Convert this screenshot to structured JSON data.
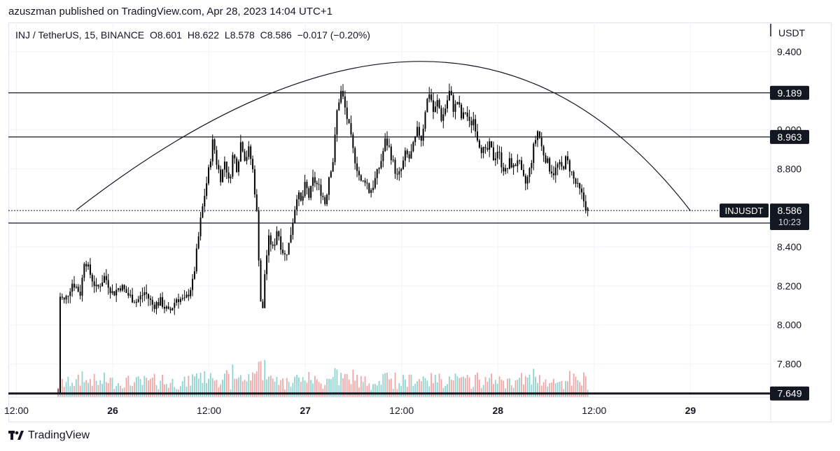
{
  "published_line": "azuszman published on TradingView.com, Apr 28, 2023 14:04 UTC+1",
  "legend": {
    "symbol": "INJ / TetherUS, 15, BINANCE",
    "open": "O8.601",
    "high": "H8.622",
    "low": "L8.578",
    "close": "C8.586",
    "change": "−0.017 (−0.20%)"
  },
  "footer": {
    "logo_icon": "tradingview-logo-icon",
    "brand": "TradingView"
  },
  "colors": {
    "candle": "#000000",
    "volume_up": "#8fd3d0",
    "volume_down": "#f2a6a6",
    "grid": "#f0f3fa",
    "axis_text": "#131722"
  },
  "chart_data": {
    "type": "candlestick",
    "symbol": "INJUSDT",
    "timeframe": "15",
    "currency_label": "USDT",
    "y_ticks": [
      7.8,
      8.0,
      8.2,
      8.4,
      8.8,
      9.0,
      9.4
    ],
    "y_tick_labels": [
      "7.800",
      "8.000",
      "8.200",
      "8.400",
      "8.800",
      "9.000",
      "9.400"
    ],
    "ylim": [
      7.63,
      9.55
    ],
    "x_ticks": [
      {
        "label": "12:00",
        "t": 12
      },
      {
        "label": "26",
        "t": 24
      },
      {
        "label": "12:00",
        "t": 36
      },
      {
        "label": "27",
        "t": 48
      },
      {
        "label": "12:00",
        "t": 60
      },
      {
        "label": "28",
        "t": 72
      },
      {
        "label": "12:00",
        "t": 84
      },
      {
        "label": "29",
        "t": 96
      }
    ],
    "xlim": [
      11,
      106
    ],
    "horizontal_levels": [
      {
        "value": 9.189,
        "label": "9.189"
      },
      {
        "value": 8.963,
        "label": "8.963"
      },
      {
        "value": 8.522,
        "label": "8.522"
      },
      {
        "value": 7.649,
        "label": "7.649",
        "thick": true
      }
    ],
    "last_price": {
      "value": 8.586,
      "label": "8.586",
      "name": "INJUSDT",
      "countdown": "10:23"
    },
    "arc": {
      "start": [
        19.5,
        8.59
      ],
      "peak": [
        62.5,
        9.35
      ],
      "end": [
        96,
        8.585
      ]
    },
    "price_path": [
      [
        17.2,
        7.65
      ],
      [
        17.4,
        8.15
      ],
      [
        18,
        8.12
      ],
      [
        19,
        8.22
      ],
      [
        20,
        8.16
      ],
      [
        20.5,
        8.35
      ],
      [
        21,
        8.28
      ],
      [
        22,
        8.18
      ],
      [
        23,
        8.25
      ],
      [
        24,
        8.16
      ],
      [
        25,
        8.2
      ],
      [
        26,
        8.15
      ],
      [
        27,
        8.12
      ],
      [
        28,
        8.17
      ],
      [
        29,
        8.1
      ],
      [
        30,
        8.12
      ],
      [
        31,
        8.06
      ],
      [
        32,
        8.14
      ],
      [
        33,
        8.12
      ],
      [
        34,
        8.22
      ],
      [
        35,
        8.55
      ],
      [
        35.5,
        8.68
      ],
      [
        36,
        8.8
      ],
      [
        36.5,
        8.95
      ],
      [
        37,
        8.82
      ],
      [
        37.5,
        8.75
      ],
      [
        38,
        8.85
      ],
      [
        38.5,
        8.72
      ],
      [
        39,
        8.88
      ],
      [
        39.5,
        8.8
      ],
      [
        40,
        8.95
      ],
      [
        40.5,
        8.85
      ],
      [
        41,
        8.9
      ],
      [
        41.5,
        8.78
      ],
      [
        42,
        8.55
      ],
      [
        42.3,
        8.25
      ],
      [
        42.6,
        8.0
      ],
      [
        43,
        8.3
      ],
      [
        43.5,
        8.45
      ],
      [
        44,
        8.38
      ],
      [
        44.5,
        8.5
      ],
      [
        45,
        8.4
      ],
      [
        45.5,
        8.35
      ],
      [
        46,
        8.42
      ],
      [
        46.5,
        8.55
      ],
      [
        47,
        8.68
      ],
      [
        47.5,
        8.62
      ],
      [
        48,
        8.72
      ],
      [
        48.5,
        8.65
      ],
      [
        49,
        8.75
      ],
      [
        50,
        8.68
      ],
      [
        50.5,
        8.62
      ],
      [
        51,
        8.78
      ],
      [
        51.5,
        8.85
      ],
      [
        52,
        9.12
      ],
      [
        52.5,
        9.2
      ],
      [
        53,
        9.1
      ],
      [
        53.5,
        9.0
      ],
      [
        54,
        8.88
      ],
      [
        54.5,
        8.8
      ],
      [
        55,
        8.72
      ],
      [
        55.5,
        8.75
      ],
      [
        56,
        8.68
      ],
      [
        56.5,
        8.72
      ],
      [
        57,
        8.78
      ],
      [
        57.5,
        8.85
      ],
      [
        58,
        8.95
      ],
      [
        58.5,
        8.9
      ],
      [
        59,
        8.82
      ],
      [
        59.5,
        8.75
      ],
      [
        60,
        8.8
      ],
      [
        60.5,
        8.88
      ],
      [
        61,
        8.85
      ],
      [
        61.5,
        8.92
      ],
      [
        62,
        9.0
      ],
      [
        62.5,
        8.95
      ],
      [
        63,
        9.12
      ],
      [
        63.5,
        9.2
      ],
      [
        64,
        9.08
      ],
      [
        64.5,
        9.15
      ],
      [
        65,
        9.05
      ],
      [
        65.5,
        9.12
      ],
      [
        66,
        9.2
      ],
      [
        66.5,
        9.1
      ],
      [
        67,
        9.15
      ],
      [
        67.5,
        9.05
      ],
      [
        68,
        9.1
      ],
      [
        68.5,
        9.02
      ],
      [
        69,
        9.06
      ],
      [
        69.5,
        8.95
      ],
      [
        70,
        8.9
      ],
      [
        70.5,
        8.88
      ],
      [
        71,
        8.92
      ],
      [
        71.5,
        8.85
      ],
      [
        72,
        8.9
      ],
      [
        72.5,
        8.82
      ],
      [
        73,
        8.78
      ],
      [
        73.5,
        8.84
      ],
      [
        74,
        8.8
      ],
      [
        74.5,
        8.86
      ],
      [
        75,
        8.76
      ],
      [
        75.5,
        8.72
      ],
      [
        76,
        8.8
      ],
      [
        76.5,
        8.92
      ],
      [
        77,
        9.0
      ],
      [
        77.5,
        8.9
      ],
      [
        78,
        8.85
      ],
      [
        78.5,
        8.8
      ],
      [
        79,
        8.78
      ],
      [
        79.5,
        8.82
      ],
      [
        80,
        8.8
      ],
      [
        80.5,
        8.85
      ],
      [
        81,
        8.8
      ],
      [
        81.5,
        8.74
      ],
      [
        82,
        8.7
      ],
      [
        82.5,
        8.66
      ],
      [
        83,
        8.6
      ],
      [
        83.2,
        8.586
      ]
    ]
  }
}
